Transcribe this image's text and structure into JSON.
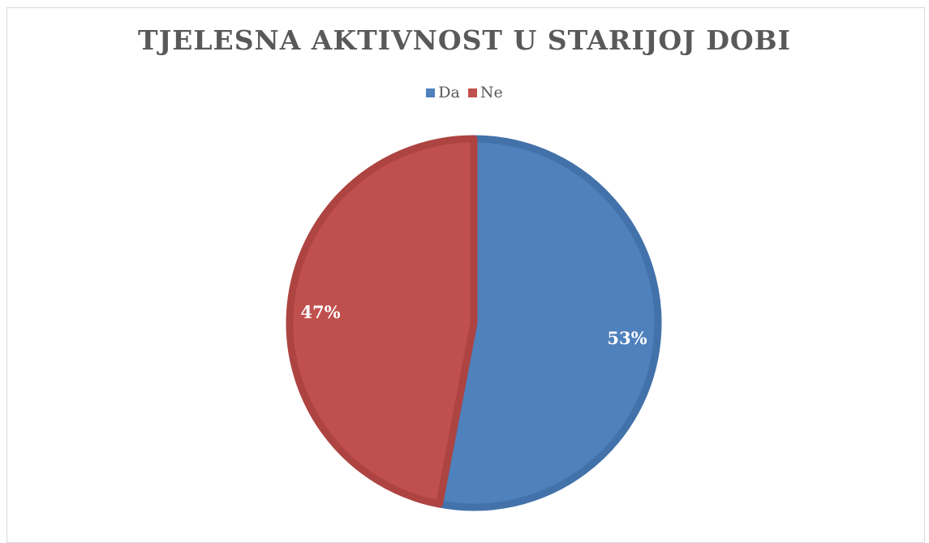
{
  "chart_data": {
    "type": "pie",
    "title": "TJELESNA AKTIVNOST U STARIJOJ DOBI",
    "categories": [
      "Da",
      "Ne"
    ],
    "values": [
      53,
      47
    ],
    "labels": [
      "53%",
      "47%"
    ],
    "colors": [
      "#4f81bd",
      "#c0504d"
    ],
    "legend_position": "top"
  }
}
